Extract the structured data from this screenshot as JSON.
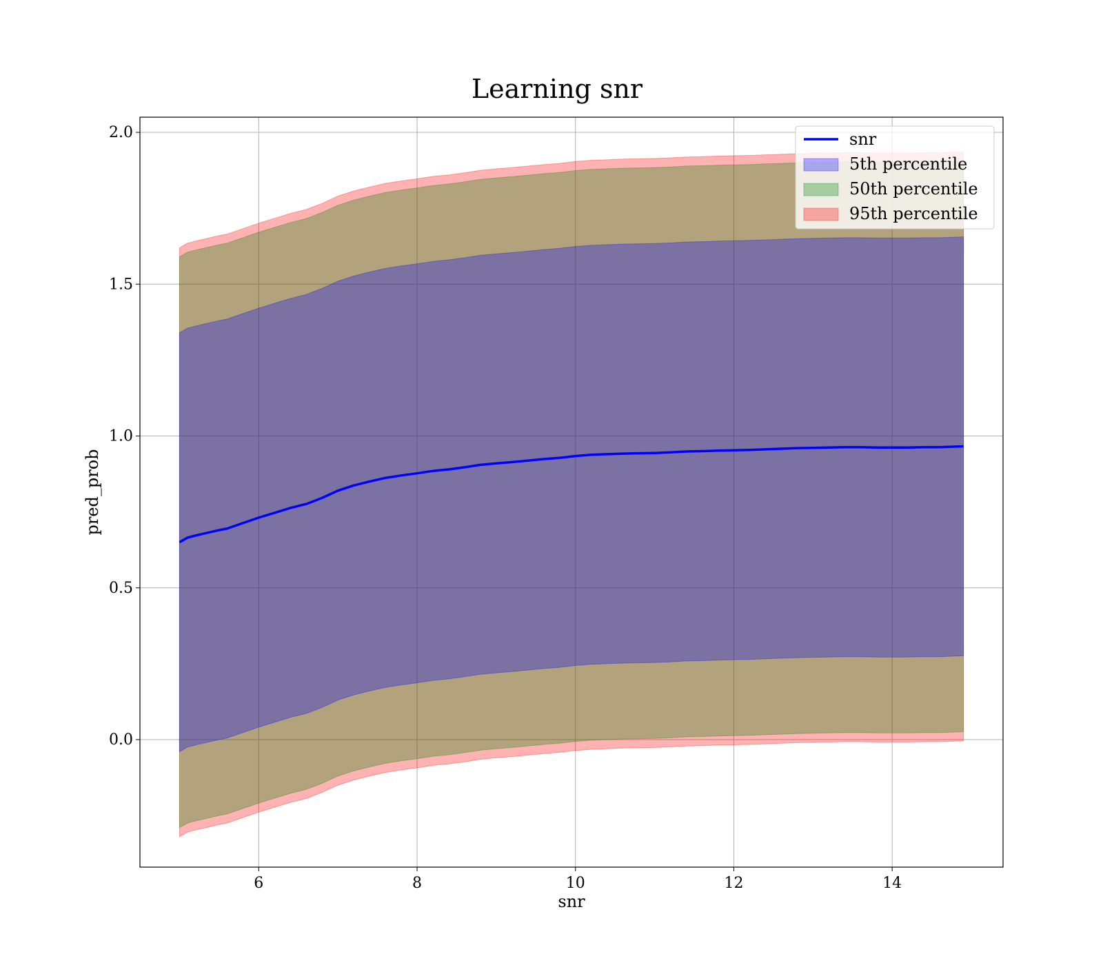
{
  "chart_data": {
    "type": "area",
    "title": "Learning snr",
    "xlabel": "snr",
    "ylabel": "pred_prob",
    "xlim": [
      4.5,
      15.4
    ],
    "ylim": [
      -0.42,
      2.05
    ],
    "xticks": [
      6,
      8,
      10,
      12,
      14
    ],
    "yticks": [
      0.0,
      0.5,
      1.0,
      1.5,
      2.0
    ],
    "xtick_labels": [
      "6",
      "8",
      "10",
      "12",
      "14"
    ],
    "ytick_labels": [
      "0.0",
      "0.5",
      "1.0",
      "1.5",
      "2.0"
    ],
    "grid": true,
    "legend_position": "top-right",
    "x": [
      5.0,
      5.1,
      5.2,
      5.3,
      5.4,
      5.5,
      5.6,
      5.8,
      6.0,
      6.2,
      6.4,
      6.6,
      6.8,
      7.0,
      7.2,
      7.4,
      7.6,
      7.8,
      8.0,
      8.2,
      8.4,
      8.6,
      8.8,
      9.0,
      9.2,
      9.4,
      9.6,
      9.8,
      10.0,
      10.2,
      10.4,
      10.6,
      10.8,
      11.0,
      11.2,
      11.4,
      11.6,
      11.8,
      12.0,
      12.2,
      12.4,
      12.6,
      12.8,
      13.0,
      13.2,
      13.4,
      13.6,
      13.8,
      14.0,
      14.2,
      14.4,
      14.6,
      14.9
    ],
    "series": [
      {
        "name": "snr",
        "kind": "line",
        "color": "#0000ff",
        "values": [
          0.65,
          0.665,
          0.672,
          0.678,
          0.684,
          0.69,
          0.695,
          0.713,
          0.731,
          0.747,
          0.763,
          0.776,
          0.796,
          0.82,
          0.837,
          0.85,
          0.862,
          0.87,
          0.877,
          0.885,
          0.89,
          0.897,
          0.905,
          0.91,
          0.914,
          0.919,
          0.924,
          0.928,
          0.934,
          0.938,
          0.94,
          0.942,
          0.943,
          0.944,
          0.946,
          0.949,
          0.95,
          0.952,
          0.953,
          0.954,
          0.956,
          0.958,
          0.96,
          0.961,
          0.962,
          0.963,
          0.963,
          0.962,
          0.962,
          0.962,
          0.963,
          0.963,
          0.966
        ]
      },
      {
        "name": "5th percentile",
        "kind": "band",
        "color": "#0000ff",
        "offset": 0.69
      },
      {
        "name": "50th percentile",
        "kind": "band",
        "color": "#008000",
        "offset": 0.94
      },
      {
        "name": "95th percentile",
        "kind": "band",
        "color": "#ff0000",
        "offset": 0.97
      }
    ]
  }
}
